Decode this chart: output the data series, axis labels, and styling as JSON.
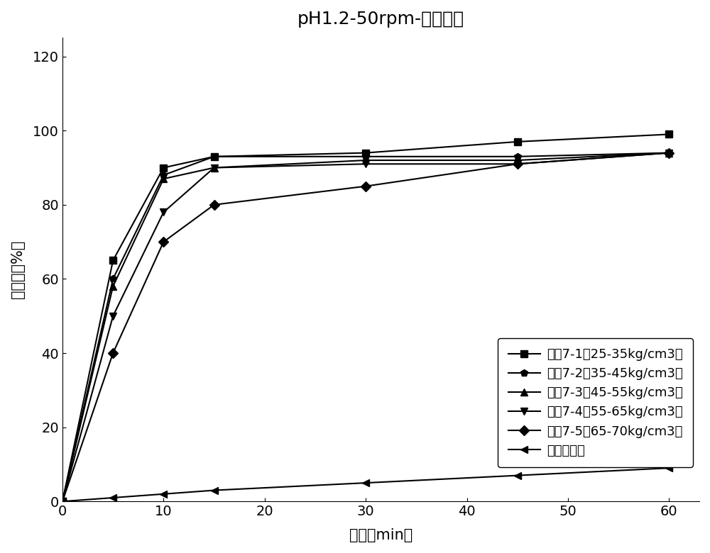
{
  "title": "pH1.2-50rpm-释放曲线",
  "xlabel": "时间（min）",
  "ylabel": "释放度（%）",
  "xlim": [
    0,
    63
  ],
  "ylim": [
    0,
    125
  ],
  "yticks": [
    0,
    20,
    40,
    60,
    80,
    100,
    120
  ],
  "xticks": [
    0,
    10,
    20,
    30,
    40,
    50,
    60
  ],
  "series": [
    {
      "label": "样品7-1（25-35kg/cm3）",
      "x": [
        0,
        5,
        10,
        15,
        30,
        45,
        60
      ],
      "y": [
        0,
        65,
        90,
        93,
        94,
        97,
        99
      ],
      "marker": "s",
      "color": "#000000"
    },
    {
      "label": "样品7-2（35-45kg/cm3）",
      "x": [
        0,
        5,
        10,
        15,
        30,
        45,
        60
      ],
      "y": [
        0,
        60,
        88,
        93,
        93,
        93,
        94
      ],
      "marker": "p",
      "color": "#000000"
    },
    {
      "label": "样品7-3（45-55kg/cm3）",
      "x": [
        0,
        5,
        10,
        15,
        30,
        45,
        60
      ],
      "y": [
        0,
        58,
        87,
        90,
        92,
        92,
        94
      ],
      "marker": "^",
      "color": "#000000"
    },
    {
      "label": "样品7-4（55-65kg/cm3）",
      "x": [
        0,
        5,
        10,
        15,
        30,
        45,
        60
      ],
      "y": [
        0,
        50,
        78,
        90,
        91,
        91,
        94
      ],
      "marker": "v",
      "color": "#000000"
    },
    {
      "label": "样品7-5（65-70kg/cm3）",
      "x": [
        0,
        5,
        10,
        15,
        30,
        45,
        60
      ],
      "y": [
        0,
        40,
        70,
        80,
        85,
        91,
        94
      ],
      "marker": "D",
      "color": "#000000"
    },
    {
      "label": "游离碱形式",
      "x": [
        0,
        5,
        10,
        15,
        30,
        45,
        60
      ],
      "y": [
        0,
        1,
        2,
        3,
        5,
        7,
        9
      ],
      "marker": "<",
      "color": "#000000"
    }
  ],
  "title_fontsize": 18,
  "label_fontsize": 15,
  "tick_fontsize": 14,
  "legend_fontsize": 13,
  "linewidth": 1.5,
  "markersize": 7,
  "background_color": "#ffffff"
}
